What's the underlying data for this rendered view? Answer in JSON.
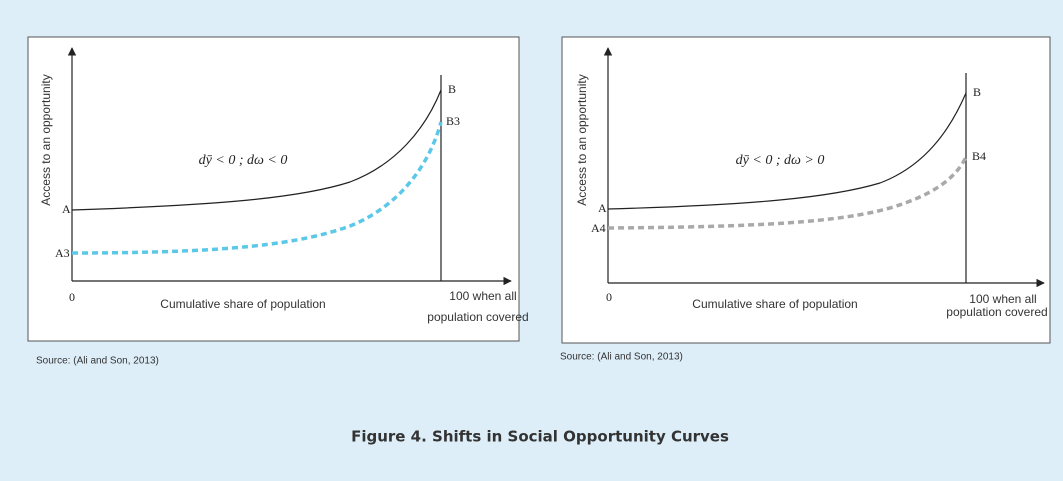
{
  "panels": [
    {
      "y_axis_label": "Access to an opportunity",
      "equation": "dȳ < 0 ; dω < 0",
      "point_a": "A",
      "point_a_shift": "A3",
      "point_b": "B",
      "point_b_shift": "B3",
      "origin_label": "0",
      "x_axis_label": "Cumulative share of population",
      "end_label_line1": "100 when all",
      "end_label_line2": "population covered",
      "source": "Source: (Ali and Son, 2013)"
    },
    {
      "y_axis_label": "Access to an opportunity",
      "equation": "dȳ < 0 ; dω > 0",
      "point_a": "A",
      "point_a_shift": "A4",
      "point_b": "B",
      "point_b_shift": "B4",
      "origin_label": "0",
      "x_axis_label": "Cumulative share of population",
      "end_label_line1": "100 when all",
      "end_label_line2": "population covered",
      "source": "Source: (Ali and Son, 2013)"
    }
  ],
  "caption": "Figure 4. Shifts in Social Opportunity Curves"
}
